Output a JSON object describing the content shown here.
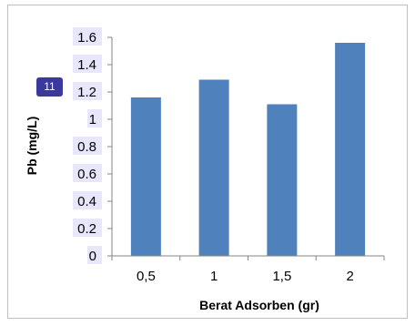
{
  "badge": {
    "label": "11"
  },
  "colors": {
    "bar": "#4f81bd",
    "axis": "#868686",
    "highlight": "#e8e6fa",
    "badge": "#3b3a9c"
  },
  "chart_data": {
    "type": "bar",
    "title": "",
    "xlabel": "Berat Adsorben (gr)",
    "ylabel": "Pb (mg/L)",
    "categories": [
      "0,5",
      "1",
      "1,5",
      "2"
    ],
    "values": [
      1.16,
      1.29,
      1.11,
      1.56
    ],
    "ylim": [
      0,
      1.6
    ],
    "yticks": [
      "0",
      "0.2",
      "0.4",
      "0.6",
      "0.8",
      "1",
      "1.2",
      "1.4",
      "1.6"
    ],
    "grid": false,
    "legend": "none"
  }
}
